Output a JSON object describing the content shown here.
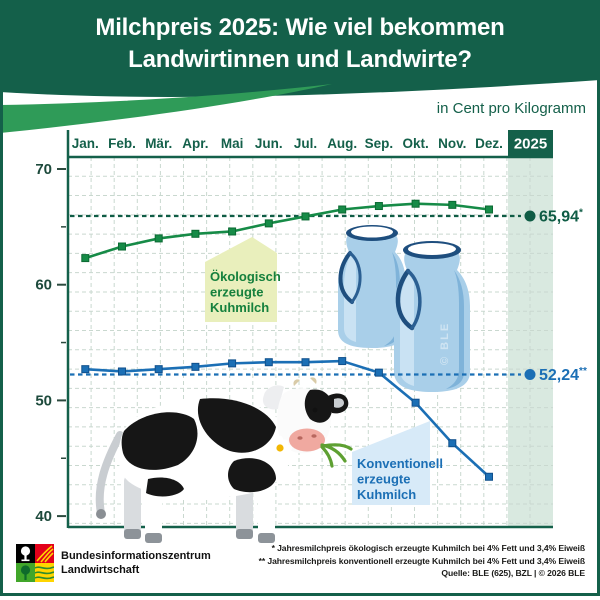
{
  "header": {
    "title_line1": "Milchpreis 2025: Wie viel bekommen",
    "title_line2": "Landwirtinnen und Landwirte?",
    "unit_label": "in Cent pro Kilogramm"
  },
  "chart_data": {
    "type": "line",
    "title": "Milchpreis 2025: Wie viel bekommen Landwirtinnen und Landwirte?",
    "unit": "in Cent pro Kilogramm",
    "year_column_label": "2025",
    "categories": [
      "Jan.",
      "Feb.",
      "Mär.",
      "Apr.",
      "Mai",
      "Jun.",
      "Jul.",
      "Aug.",
      "Sep.",
      "Okt.",
      "Nov.",
      "Dez."
    ],
    "ylim": [
      40,
      70
    ],
    "yticks_major": [
      70,
      60,
      50,
      40
    ],
    "yticks_minor": [
      65,
      55,
      45
    ],
    "grid": true,
    "legend_position": "inline-boxes",
    "series": [
      {
        "name": "Ökologisch erzeugte Kuhmilch",
        "color": "#168B47",
        "marker_edge": "#0B6A33",
        "values": [
          62.3,
          63.3,
          64.0,
          64.4,
          64.6,
          65.3,
          65.9,
          66.5,
          66.8,
          67.0,
          66.9,
          66.5
        ],
        "annual_value": 65.94,
        "annual_label": "65,94",
        "annual_suffix": "*",
        "annual_color": "#0F5C45",
        "box_lines": [
          "Ökologisch",
          "erzeugte",
          "Kuhmilch"
        ],
        "box_bg": "#E9EFBC",
        "box_text_color": "#15803D"
      },
      {
        "name": "Konventionell erzeugte Kuhmilch",
        "color": "#1B6FB5",
        "marker_edge": "#11508C",
        "values": [
          52.7,
          52.5,
          52.7,
          52.9,
          53.2,
          53.3,
          53.3,
          53.4,
          52.4,
          49.8,
          46.3,
          43.4
        ],
        "annual_value": 52.24,
        "annual_label": "52,24",
        "annual_suffix": "**",
        "annual_color": "#1B6FB5",
        "box_lines": [
          "Konventionell",
          "erzeugte",
          "Kuhmilch"
        ],
        "box_bg": "#D7EAF8",
        "box_text_color": "#1B6FB5"
      }
    ],
    "watermark": "© BLE",
    "colors": {
      "dark_green": "#14604A",
      "swoosh_green": "#2F9B58",
      "band": "#D9E9E0",
      "grid": "#C9D8CF"
    }
  },
  "footer": {
    "logo_line1": "Bundesinformationszentrum",
    "logo_line2": "Landwirtschaft",
    "footnote1": "* Jahresmilchpreis ökologisch erzeugte Kuhmilch bei 4% Fett und 3,4% Eiweiß",
    "footnote2": "** Jahresmilchpreis konventionell erzeugte Kuhmilch bei 4% Fett und 3,4% Eiweiß",
    "source": "Quelle: BLE (625), BZL | © 2026 BLE"
  }
}
